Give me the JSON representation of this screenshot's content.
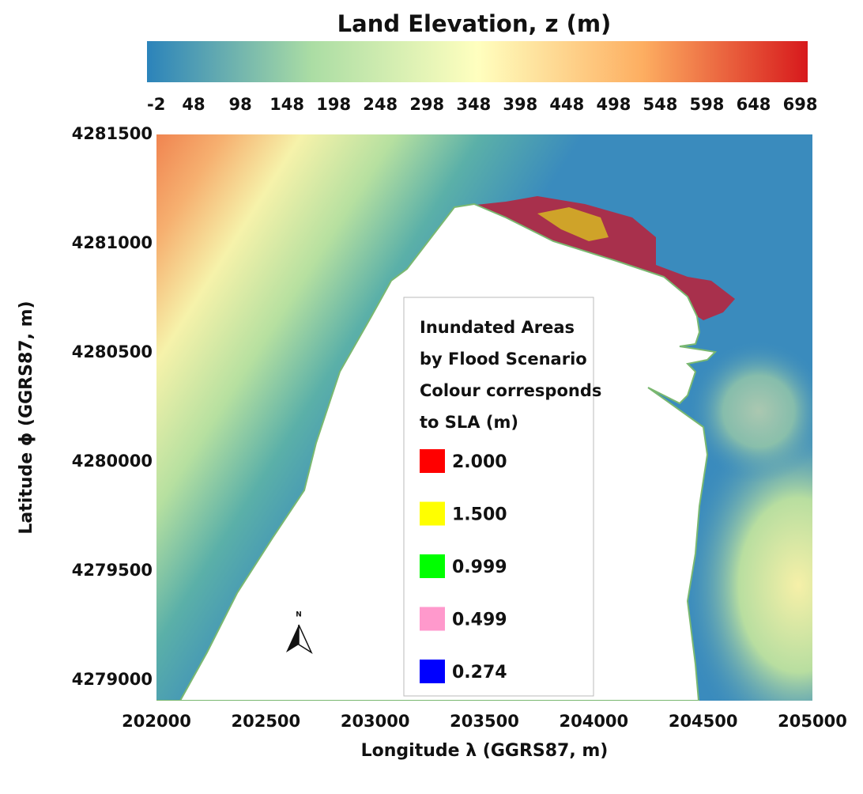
{
  "chart_data": {
    "type": "map",
    "title": "Land Elevation, z (m)",
    "x_label": "Longitude λ (GGRS87, m)",
    "y_label": "Latitude ϕ (GGRS87, m)",
    "xlim": [
      202000,
      205000
    ],
    "xticks": [
      202000,
      202500,
      203000,
      203500,
      204000,
      204500,
      205000
    ],
    "ylim": [
      4278905,
      4281500
    ],
    "yticks": [
      4279000,
      4279500,
      4280000,
      4280500,
      4281000,
      4281500
    ],
    "colorbar": {
      "lim": [
        -2,
        706
      ],
      "ticks": [
        -2,
        48,
        98,
        148,
        198,
        248,
        298,
        348,
        398,
        448,
        498,
        548,
        598,
        648,
        698
      ],
      "colormap": [
        "#2b83ba",
        "#abdda4",
        "#ffffbf",
        "#fdae61",
        "#d7191c"
      ]
    },
    "legend": {
      "title": [
        "Inundated Areas",
        "by Flood Scenario",
        "Colour corresponds",
        "to SLA (m)"
      ],
      "items": [
        {
          "label": "2.000",
          "color": "#ff0000"
        },
        {
          "label": "1.500",
          "color": "#ffff00"
        },
        {
          "label": "0.999",
          "color": "#00ff00"
        },
        {
          "label": "0.499",
          "color": "#ff99cc"
        },
        {
          "label": "0.274",
          "color": "#0000ff"
        }
      ]
    },
    "north_label": "N"
  }
}
